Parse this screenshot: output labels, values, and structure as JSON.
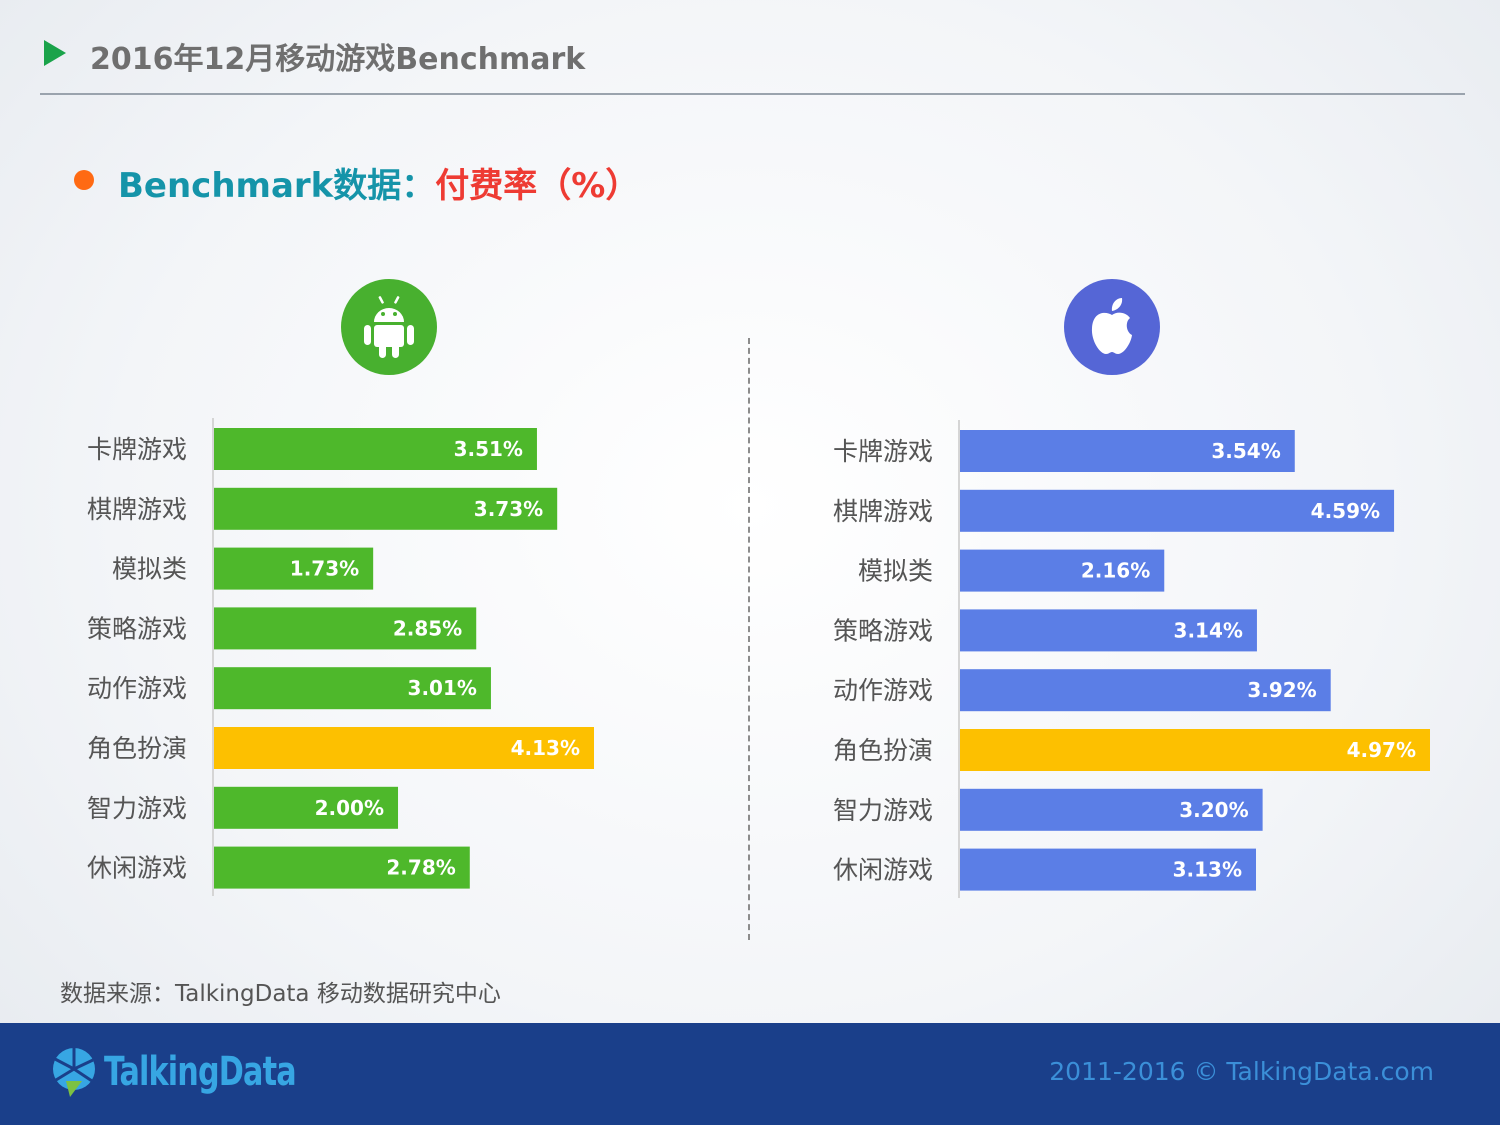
{
  "header": {
    "title": "2016年12月移动游戏Benchmark"
  },
  "subtitle": {
    "part1": "Benchmark数据：",
    "part2": "付费率（%）"
  },
  "colors": {
    "android": "#4eb82b",
    "ios": "#5b7ee6",
    "highlight": "#fdc000",
    "header_arrow": "#1aa34a",
    "bullet": "#ff6a13"
  },
  "icons": {
    "android": "android-icon",
    "ios": "apple-icon"
  },
  "chart_data": [
    {
      "type": "bar",
      "orientation": "horizontal",
      "platform": "Android",
      "categories": [
        "卡牌游戏",
        "棋牌游戏",
        "模拟类",
        "策略游戏",
        "动作游戏",
        "角色扮演",
        "智力游戏",
        "休闲游戏"
      ],
      "values": [
        3.51,
        3.73,
        1.73,
        2.85,
        3.01,
        4.13,
        2.0,
        2.78
      ],
      "value_labels": [
        "3.51%",
        "3.73%",
        "1.73%",
        "2.85%",
        "3.01%",
        "4.13%",
        "2.00%",
        "2.78%"
      ],
      "highlight_index": 5,
      "xlim": [
        0,
        4.13
      ]
    },
    {
      "type": "bar",
      "orientation": "horizontal",
      "platform": "iOS",
      "categories": [
        "卡牌游戏",
        "棋牌游戏",
        "模拟类",
        "策略游戏",
        "动作游戏",
        "角色扮演",
        "智力游戏",
        "休闲游戏"
      ],
      "values": [
        3.54,
        4.59,
        2.16,
        3.14,
        3.92,
        4.97,
        3.2,
        3.13
      ],
      "value_labels": [
        "3.54%",
        "4.59%",
        "2.16%",
        "3.14%",
        "3.92%",
        "4.97%",
        "3.20%",
        "3.13%"
      ],
      "highlight_index": 5,
      "xlim": [
        0,
        4.97
      ]
    }
  ],
  "source": "数据来源：TalkingData 移动数据研究中心",
  "footer": {
    "logo_text": "TalkingData",
    "copyright": "2011-2016 © TalkingData.com"
  }
}
